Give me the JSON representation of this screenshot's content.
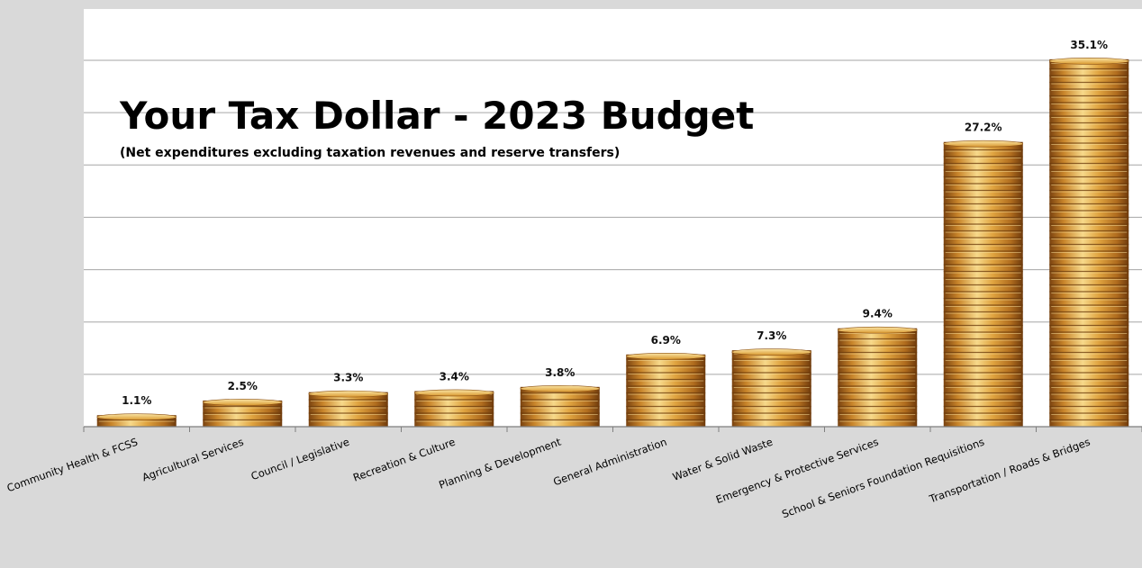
{
  "chart_data": {
    "type": "bar",
    "title": "Your Tax Dollar - 2023 Budget",
    "subtitle": "(Net expenditures excluding taxation revenues and reserve transfers)",
    "categories": [
      "Community Health & FCSS",
      "Agricultural Services",
      "Council / Legislative",
      "Recreation & Culture",
      "Planning & Development",
      "General Administration",
      "Water & Solid Waste",
      "Emergency & Protective Services",
      "School & Seniors Foundation Requisitions",
      "Transportation / Roads & Bridges"
    ],
    "values": [
      1.1,
      2.5,
      3.3,
      3.4,
      3.8,
      6.9,
      7.3,
      9.4,
      27.2,
      35.1
    ],
    "data_labels": [
      "1.1%",
      "2.5%",
      "3.3%",
      "3.4%",
      "3.8%",
      "6.9%",
      "7.3%",
      "9.4%",
      "27.2%",
      "35.1%"
    ],
    "ylim": [
      0,
      35
    ],
    "grid": true,
    "colors": {
      "coin_light": "#f6d27a",
      "coin_mid": "#d9962c",
      "coin_dark": "#8a4e10",
      "plot_bg": "#ffffff",
      "outer_bg": "#d9d9d9",
      "gridline": "#a6a6a6"
    }
  }
}
